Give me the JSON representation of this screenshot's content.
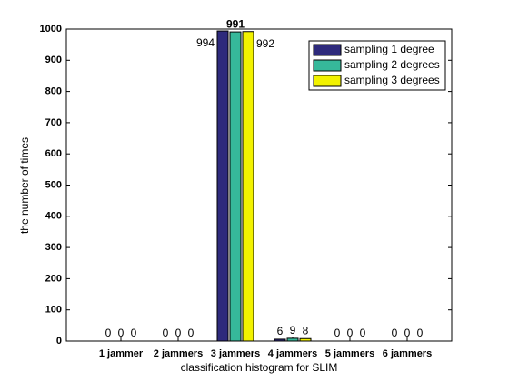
{
  "chart_data": {
    "type": "bar",
    "xlabel": "classification histogram for SLIM",
    "ylabel": "the number of times",
    "categories": [
      "1 jammer",
      "2 jammers",
      "3 jammers",
      "4 jammers",
      "5 jammers",
      "6 jammers"
    ],
    "series": [
      {
        "name": "sampling 1 degree",
        "color": "#2e2a7c",
        "values": [
          0,
          0,
          994,
          6,
          0,
          0
        ]
      },
      {
        "name": "sampling 2 degrees",
        "color": "#36b89a",
        "values": [
          0,
          0,
          991,
          9,
          0,
          0
        ]
      },
      {
        "name": "sampling 3 degrees",
        "color": "#f2f200",
        "values": [
          0,
          0,
          992,
          8,
          0,
          0
        ]
      }
    ],
    "ylim": [
      0,
      1000
    ],
    "yticks": [
      0,
      100,
      200,
      300,
      400,
      500,
      600,
      700,
      800,
      900,
      1000
    ],
    "legend": "upper right"
  }
}
